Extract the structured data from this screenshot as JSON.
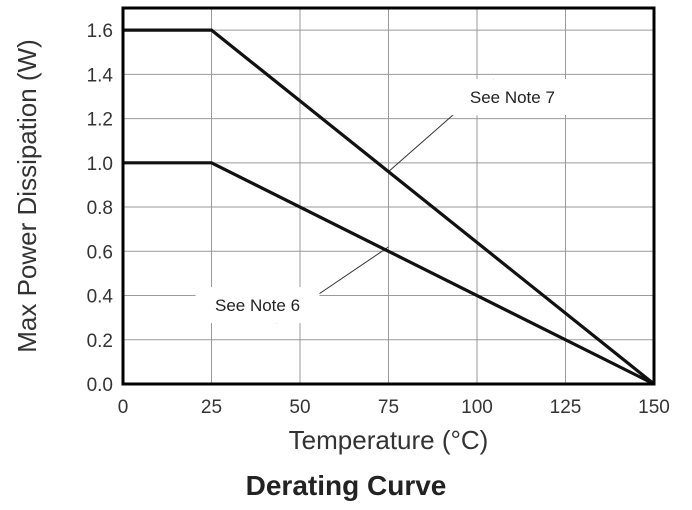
{
  "caption": "Derating Curve",
  "chart_data": {
    "type": "line",
    "title": "",
    "xlabel": "Temperature (°C)",
    "ylabel": "Max Power Dissipation (W)",
    "xlim": [
      0,
      150
    ],
    "ylim": [
      0,
      1.7
    ],
    "grid": true,
    "x_ticks": [
      "0",
      "25",
      "50",
      "75",
      "100",
      "125",
      "150"
    ],
    "y_ticks": [
      "0.0",
      "0.2",
      "0.4",
      "0.6",
      "0.8",
      "1.0",
      "1.2",
      "1.4",
      "1.6"
    ],
    "series": [
      {
        "x": [
          0,
          25,
          150
        ],
        "y": [
          1.6,
          1.6,
          0
        ]
      },
      {
        "x": [
          0,
          25,
          150
        ],
        "y": [
          1.0,
          1.0,
          0
        ]
      }
    ],
    "annotations": [
      {
        "text": "See Note 7",
        "x": 110,
        "y": 1.27,
        "points_to": {
          "x": 75,
          "y": 0.96
        }
      },
      {
        "text": "See Note 6",
        "x": 38,
        "y": 0.33,
        "points_to": {
          "x": 75,
          "y": 0.62
        }
      }
    ]
  }
}
